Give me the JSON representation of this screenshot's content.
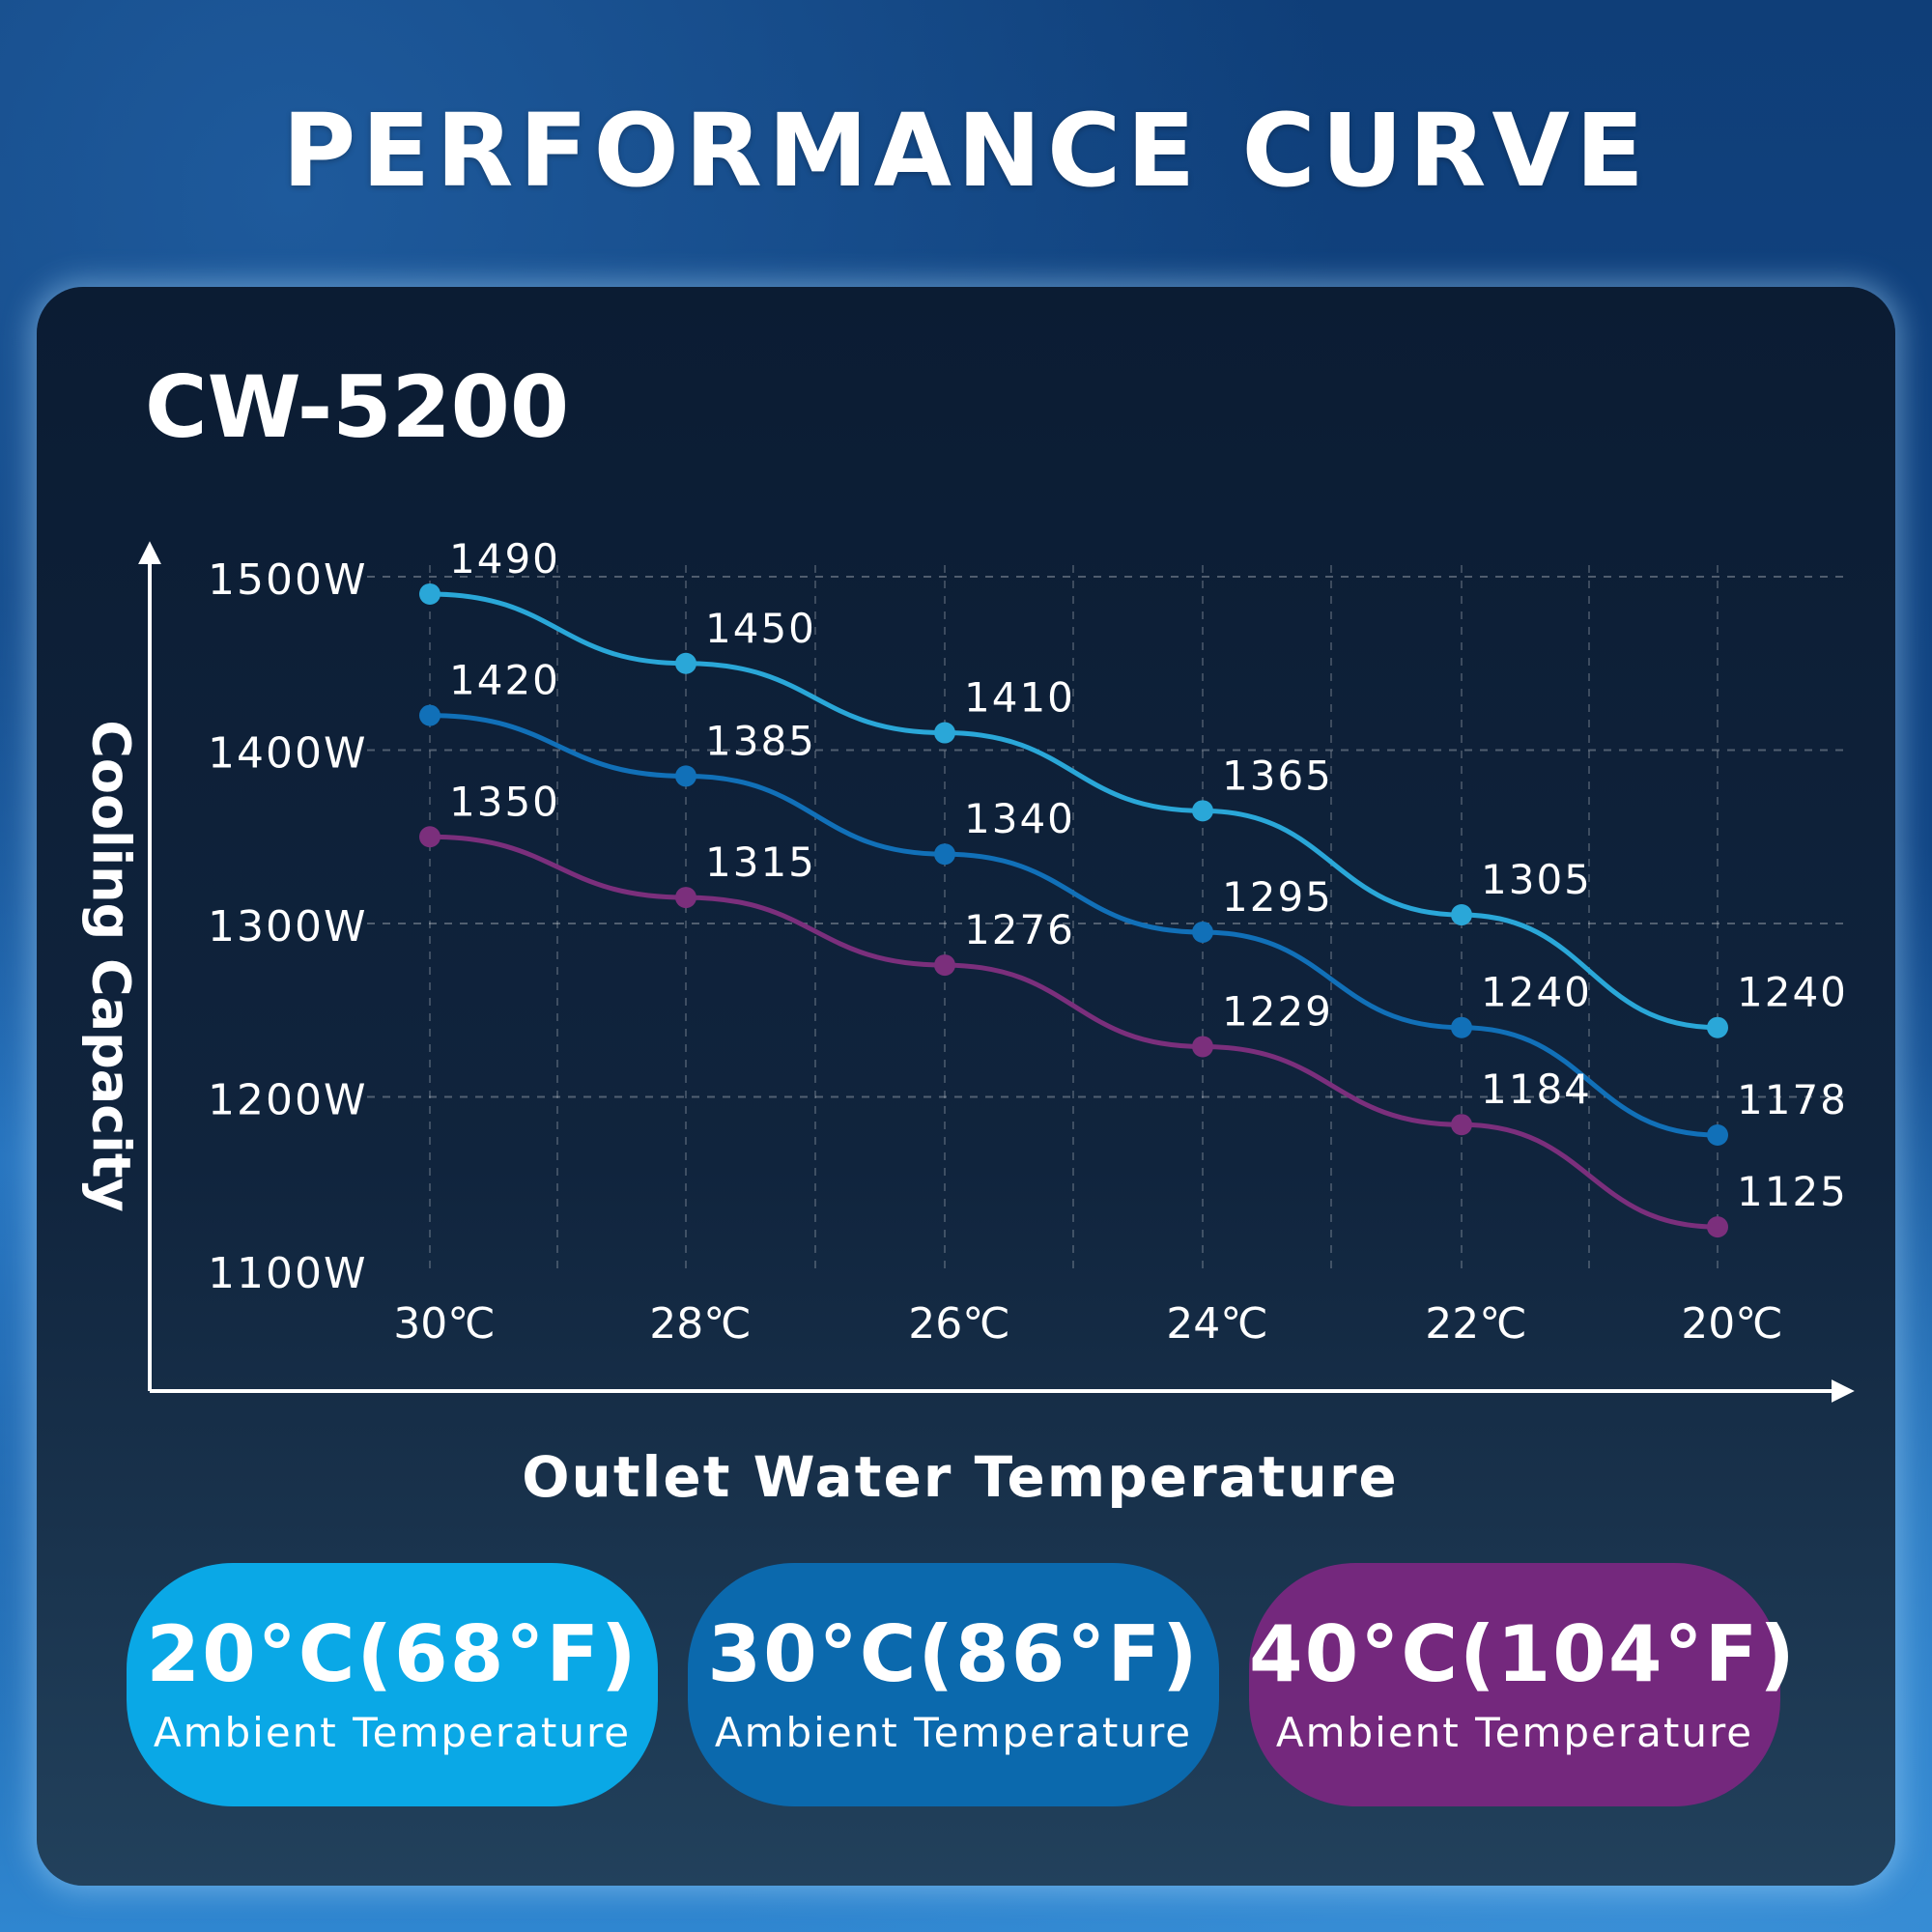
{
  "page_title": "PERFORMANCE CURVE",
  "chart_data": {
    "type": "line",
    "title": "CW-5200",
    "xlabel": "Outlet Water Temperature",
    "ylabel": "Cooling Capacity",
    "categories": [
      "30℃",
      "28℃",
      "26℃",
      "24℃",
      "22℃",
      "20℃"
    ],
    "y_ticks": [
      "1500W",
      "1400W",
      "1300W",
      "1200W",
      "1100W"
    ],
    "y_tick_values": [
      1500,
      1400,
      1300,
      1200,
      1100
    ],
    "ylim": [
      1100,
      1500
    ],
    "grid": true,
    "series": [
      {
        "name": "20°C(68°F)",
        "color": "#2aa7d8",
        "values": [
          1490,
          1450,
          1410,
          1365,
          1305,
          1240
        ]
      },
      {
        "name": "30°C(86°F)",
        "color": "#1170b8",
        "values": [
          1420,
          1385,
          1340,
          1295,
          1240,
          1178
        ]
      },
      {
        "name": "40°C(104°F)",
        "color": "#7b2f7c",
        "values": [
          1350,
          1315,
          1276,
          1229,
          1184,
          1125
        ]
      }
    ]
  },
  "legend": [
    {
      "temp": "20°C(68°F)",
      "label": "Ambient Temperature",
      "color": "#0aa8e6"
    },
    {
      "temp": "30°C(86°F)",
      "label": "Ambient Temperature",
      "color": "#0b69ad"
    },
    {
      "temp": "40°C(104°F)",
      "label": "Ambient Temperature",
      "color": "#74287d"
    }
  ]
}
